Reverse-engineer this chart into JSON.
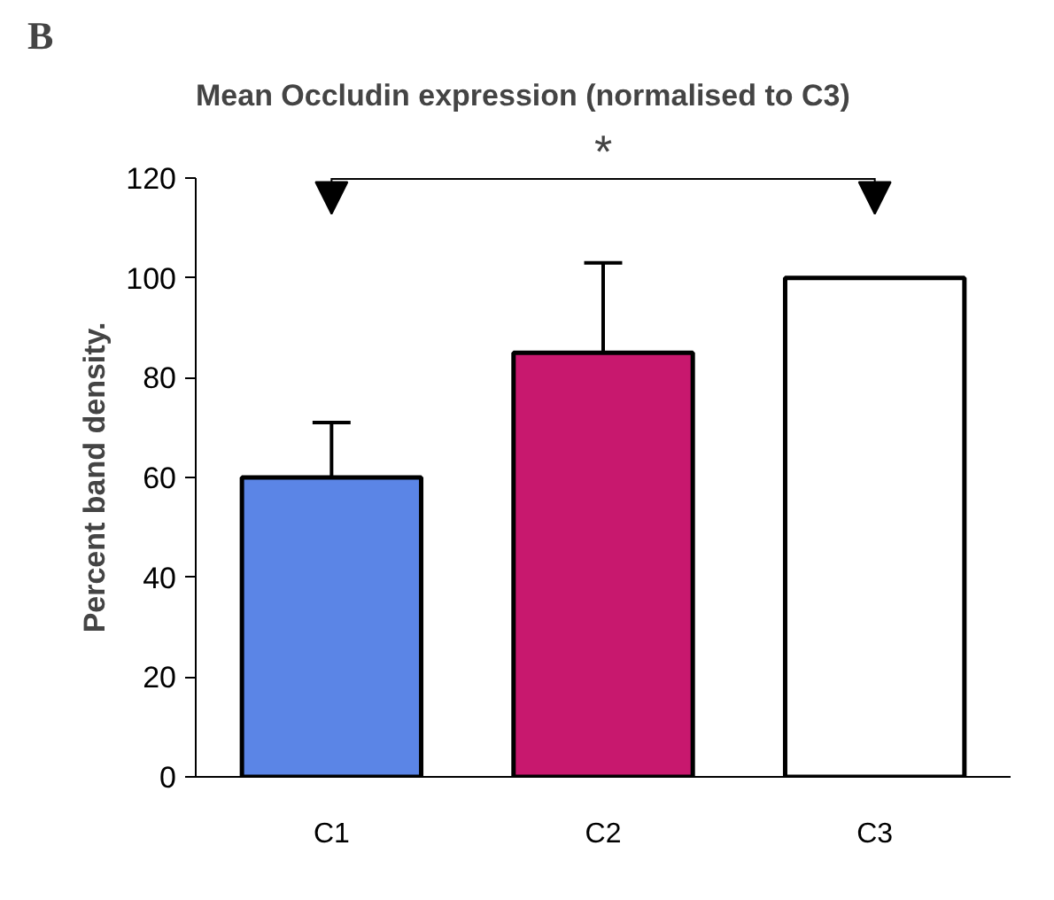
{
  "chart_data": {
    "type": "bar",
    "title": "Mean Occludin expression (normalised to C3)",
    "ylabel": "Percent band density.",
    "categories": [
      "C1",
      "C2",
      "C3"
    ],
    "values": [
      60,
      85,
      100
    ],
    "colors": [
      "#5b85e6",
      "#c8186e",
      "#ffffff"
    ],
    "errors": [
      [
        60,
        71
      ],
      [
        85,
        103
      ],
      null
    ],
    "ylim": [
      0,
      120
    ],
    "yticks": [
      0,
      20,
      40,
      60,
      80,
      100,
      120
    ],
    "grid": false,
    "annotations": [
      "B",
      "*"
    ]
  }
}
